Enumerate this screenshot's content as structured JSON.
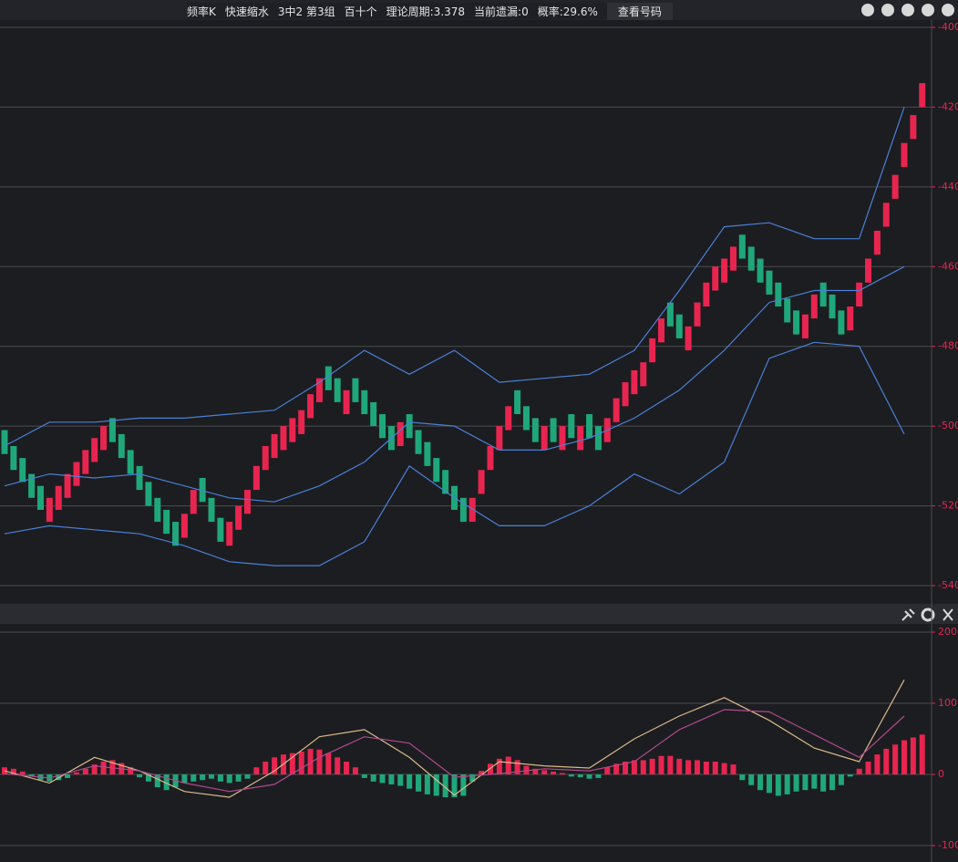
{
  "header": {
    "items": [
      "频率K",
      "快速缩水",
      "3中2 第3组",
      "百十个",
      "理论周期:3.378",
      "当前遗漏:0",
      "概率:29.6%"
    ],
    "button": "查看号码"
  },
  "chart_data": [
    {
      "type": "candlestick",
      "up_color": "#e8254f",
      "down_color": "#1fa77a",
      "line_color": "#4a80d6",
      "ylim": [
        -540,
        -400
      ],
      "yticks": [
        -400,
        -420,
        -440,
        -460,
        -480,
        -500,
        -520,
        -540
      ],
      "grid": true,
      "open": [
        -501,
        -505,
        -508,
        -512,
        -515,
        -524,
        -521,
        -518,
        -515,
        -512,
        -509,
        -506,
        -498,
        -502,
        -506,
        -510,
        -514,
        -518,
        -521,
        -524,
        -528,
        -522,
        -513,
        -518,
        -523,
        -530,
        -526,
        -522,
        -516,
        -511,
        -508,
        -506,
        -504,
        -502,
        -498,
        -494,
        -485,
        -488,
        -497,
        -488,
        -491,
        -494,
        -497,
        -500,
        -505,
        -497,
        -501,
        -504,
        -508,
        -511,
        -515,
        -518,
        -524,
        -517,
        -511,
        -506,
        -501,
        -491,
        -495,
        -498,
        -506,
        -498,
        -506,
        -497,
        -506,
        -497,
        -500,
        -504,
        -499,
        -495,
        -492,
        -490,
        -484,
        -479,
        -469,
        -472,
        -481,
        -475,
        -470,
        -466,
        -464,
        -461,
        -452,
        -455,
        -458,
        -461,
        -464,
        -468,
        -471,
        -478,
        -473,
        -464,
        -467,
        -471,
        -476,
        -470,
        -464,
        -457,
        -450,
        -443,
        -435,
        -428,
        -420
      ],
      "close": [
        -507,
        -511,
        -514,
        -518,
        -521,
        -518,
        -515,
        -512,
        -509,
        -506,
        -503,
        -500,
        -504,
        -508,
        -512,
        -516,
        -520,
        -524,
        -527,
        -530,
        -522,
        -516,
        -519,
        -524,
        -529,
        -524,
        -520,
        -516,
        -510,
        -505,
        -502,
        -500,
        -498,
        -496,
        -492,
        -488,
        -491,
        -494,
        -491,
        -494,
        -497,
        -500,
        -503,
        -506,
        -499,
        -503,
        -507,
        -510,
        -514,
        -517,
        -521,
        -524,
        -518,
        -511,
        -505,
        -500,
        -495,
        -497,
        -501,
        -504,
        -500,
        -504,
        -500,
        -503,
        -500,
        -503,
        -506,
        -498,
        -493,
        -489,
        -486,
        -484,
        -478,
        -473,
        -475,
        -478,
        -475,
        -469,
        -464,
        -460,
        -458,
        -455,
        -458,
        -461,
        -464,
        -467,
        -470,
        -474,
        -477,
        -472,
        -467,
        -470,
        -473,
        -477,
        -470,
        -464,
        -458,
        -451,
        -444,
        -437,
        -429,
        -422,
        -414
      ],
      "line_x": [
        0,
        5,
        10,
        15,
        20,
        25,
        30,
        35,
        40,
        45,
        50,
        55,
        60,
        65,
        70,
        75,
        80,
        85,
        90,
        95,
        100
      ],
      "series": [
        {
          "color": "#4a80d6",
          "values": [
            -505,
            -499,
            -499,
            -498,
            -498,
            -497,
            -496,
            -489,
            -481,
            -487,
            -481,
            -489,
            -488,
            -487,
            -481,
            -466,
            -450,
            -449,
            -453,
            -453,
            -420
          ]
        },
        {
          "color": "#4a80d6",
          "values": [
            -515,
            -512,
            -513,
            -512,
            -515,
            -518,
            -519,
            -515,
            -509,
            -499,
            -500,
            -506,
            -506,
            -503,
            -498,
            -491,
            -481,
            -469,
            -466,
            -466,
            -460
          ]
        },
        {
          "color": "#4a80d6",
          "values": [
            -527,
            -525,
            -526,
            -527,
            -530,
            -534,
            -535,
            -535,
            -529,
            -510,
            -518,
            -525,
            -525,
            -520,
            -512,
            -517,
            -509,
            -483,
            -479,
            -480,
            -502
          ]
        }
      ]
    },
    {
      "type": "macd",
      "up_color": "#e8254f",
      "down_color": "#1fa77a",
      "ylim": [
        -100,
        200
      ],
      "yticks": [
        -100,
        0,
        100,
        200
      ],
      "grid": true,
      "values": [
        10,
        8,
        4,
        -3,
        -8,
        -10,
        -8,
        -5,
        3,
        8,
        14,
        18,
        20,
        16,
        10,
        -4,
        -10,
        -18,
        -22,
        -18,
        -12,
        -10,
        -8,
        -6,
        -10,
        -12,
        -10,
        -6,
        10,
        18,
        24,
        28,
        30,
        32,
        36,
        35,
        30,
        24,
        18,
        10,
        -5,
        -10,
        -12,
        -14,
        -16,
        -20,
        -24,
        -28,
        -30,
        -32,
        -32,
        -30,
        -10,
        5,
        15,
        22,
        25,
        20,
        12,
        8,
        6,
        4,
        2,
        -3,
        -4,
        -6,
        -5,
        10,
        15,
        18,
        20,
        20,
        22,
        26,
        26,
        22,
        20,
        20,
        18,
        18,
        16,
        14,
        -8,
        -15,
        -22,
        -26,
        -30,
        -28,
        -24,
        -22,
        -20,
        -24,
        -22,
        -15,
        -3,
        8,
        18,
        28,
        36,
        42,
        48,
        52,
        56
      ],
      "line_x": [
        0,
        5,
        10,
        15,
        20,
        25,
        30,
        35,
        40,
        45,
        50,
        55,
        60,
        65,
        70,
        75,
        80,
        85,
        90,
        95,
        100
      ],
      "series": [
        {
          "color": "#d9b98a",
          "values": [
            5,
            -12,
            24,
            5,
            -24,
            -32,
            5,
            53,
            63,
            24,
            -29,
            18,
            12,
            9,
            50,
            82,
            108,
            76,
            37,
            18,
            133
          ]
        },
        {
          "color": "#b04a8c",
          "values": [
            1,
            -5,
            12,
            5,
            -12,
            -24,
            -14,
            24,
            53,
            44,
            -4,
            1,
            8,
            5,
            18,
            63,
            91,
            88,
            56,
            24,
            82
          ]
        }
      ]
    }
  ]
}
